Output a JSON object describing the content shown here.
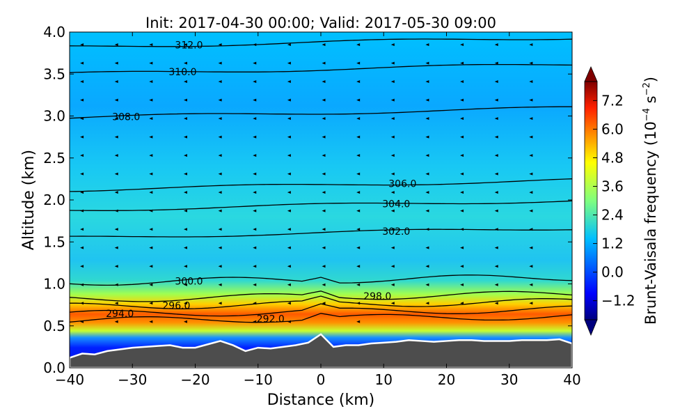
{
  "chart_data": {
    "type": "heatmap",
    "title": "Init: 2017-04-30 00:00; Valid: 2017-05-30 09:00",
    "xlabel": "Distance (km)",
    "ylabel": "Altitude (km)",
    "xlim": [
      -40,
      40
    ],
    "ylim": [
      0.0,
      4.0
    ],
    "x_ticks": [
      -40,
      -30,
      -20,
      -10,
      0,
      10,
      20,
      30,
      40
    ],
    "x_tick_labels": [
      "−40",
      "−30",
      "−20",
      "−10",
      "0",
      "10",
      "20",
      "30",
      "40"
    ],
    "y_ticks": [
      0.0,
      0.5,
      1.0,
      1.5,
      2.0,
      2.5,
      3.0,
      3.5,
      4.0
    ],
    "y_tick_labels": [
      "0.0",
      "0.5",
      "1.0",
      "1.5",
      "2.0",
      "2.5",
      "3.0",
      "3.5",
      "4.0"
    ],
    "colorbar": {
      "label": "Brunt-Vaisala frequency",
      "unit_prefix": "(10",
      "unit_exp1": "−4",
      "unit_mid": " s",
      "unit_exp2": "−2",
      "unit_suffix": ")",
      "range": [
        -2.0,
        8.0
      ],
      "ticks": [
        -1.2,
        0.0,
        1.2,
        2.4,
        3.6,
        4.8,
        6.0,
        7.2
      ],
      "tick_labels": [
        "−1.2",
        "0.0",
        "1.2",
        "2.4",
        "3.6",
        "4.8",
        "6.0",
        "7.2"
      ],
      "colormap": "jet"
    },
    "terrain": {
      "color": "#4d4d4d",
      "x": [
        -40,
        -38,
        -36,
        -34,
        -32,
        -30,
        -28,
        -26,
        -24,
        -22,
        -20,
        -18,
        -16,
        -14,
        -12,
        -10,
        -8,
        -6,
        -4,
        -2,
        0,
        2,
        4,
        6,
        8,
        10,
        12,
        14,
        16,
        18,
        20,
        22,
        24,
        26,
        28,
        30,
        32,
        34,
        36,
        38,
        40
      ],
      "height_km": [
        0.12,
        0.17,
        0.16,
        0.2,
        0.22,
        0.24,
        0.25,
        0.26,
        0.27,
        0.24,
        0.24,
        0.28,
        0.32,
        0.27,
        0.2,
        0.24,
        0.23,
        0.25,
        0.27,
        0.3,
        0.4,
        0.25,
        0.27,
        0.27,
        0.29,
        0.3,
        0.31,
        0.33,
        0.32,
        0.31,
        0.32,
        0.33,
        0.33,
        0.32,
        0.32,
        0.32,
        0.33,
        0.33,
        0.33,
        0.34,
        0.29
      ]
    },
    "theta_contours": [
      {
        "value": 292.0,
        "base_km": 0.56,
        "label": "292.0",
        "label_x": -8
      },
      {
        "value": 294.0,
        "base_km": 0.64,
        "label": "294.0",
        "label_x": -32
      },
      {
        "value": 296.0,
        "base_km": 0.73,
        "label": "296.0",
        "label_x": -23
      },
      {
        "value": 298.0,
        "base_km": 0.82,
        "label": "298.0",
        "label_x": 9
      },
      {
        "value": 300.0,
        "base_km": 1.02,
        "label": "300.0",
        "label_x": -21
      },
      {
        "value": 302.0,
        "base_km": 1.55,
        "label": "302.0",
        "label_x": 12
      },
      {
        "value": 304.0,
        "base_km": 1.88,
        "label": "304.0",
        "label_x": 12
      },
      {
        "value": 306.0,
        "base_km": 2.12,
        "label": "306.0",
        "label_x": 13
      },
      {
        "value": 308.0,
        "base_km": 2.98,
        "label": "308.0",
        "label_x": -31
      },
      {
        "value": 310.0,
        "base_km": 3.5,
        "label": "310.0",
        "label_x": -22
      },
      {
        "value": 312.0,
        "base_km": 3.82,
        "label": "312.0",
        "label_x": -21
      }
    ]
  }
}
